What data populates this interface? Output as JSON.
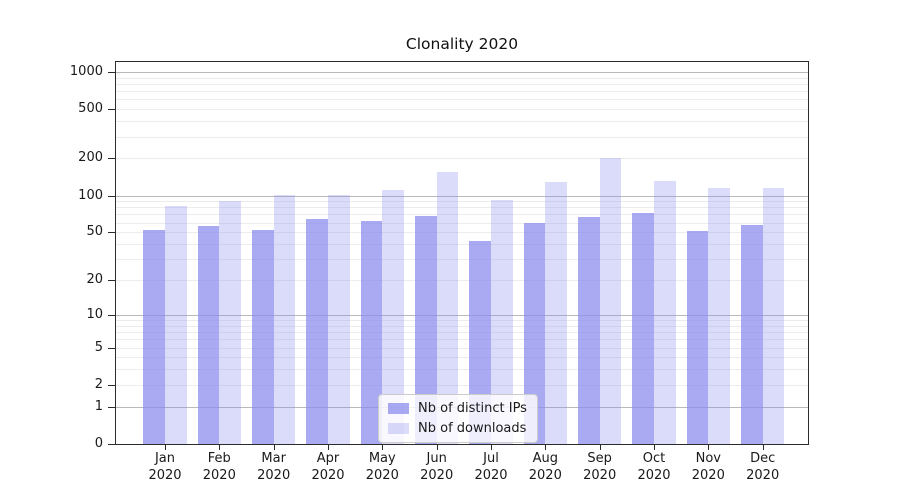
{
  "title": "Clonality 2020",
  "chart_data": {
    "type": "bar",
    "title": "Clonality 2020",
    "x": {
      "months": [
        "Jan",
        "Feb",
        "Mar",
        "Apr",
        "May",
        "Jun",
        "Jul",
        "Aug",
        "Sep",
        "Oct",
        "Nov",
        "Dec"
      ],
      "year": "2020"
    },
    "series": [
      {
        "name": "Nb of distinct IPs",
        "fill": "rgba(137,137,237,0.72)",
        "values": [
          52,
          56,
          52,
          64,
          62,
          68,
          42,
          60,
          67,
          72,
          51,
          57
        ]
      },
      {
        "name": "Nb of downloads",
        "fill": "rgba(137,137,237,0.30)",
        "values": [
          82,
          90,
          101,
          101,
          110,
          154,
          92,
          130,
          200,
          132,
          115,
          115
        ]
      }
    ],
    "y_axis": {
      "scale": "log1p",
      "tick_values": [
        1000,
        500,
        200,
        100,
        50,
        20,
        10,
        5,
        2,
        1,
        0
      ],
      "major_grid_values": [
        1,
        10,
        100,
        1000
      ],
      "minor_grid_values": [
        2,
        3,
        4,
        5,
        6,
        7,
        8,
        9,
        20,
        30,
        40,
        50,
        60,
        70,
        80,
        90,
        200,
        300,
        400,
        500,
        600,
        700,
        800,
        900
      ],
      "top_value": 1280
    },
    "legend_position": "lower center",
    "grid": true
  },
  "colors": {
    "bar_base": "#8989ed",
    "major_grid": "#b9b9b9",
    "minor_grid": "#ececec",
    "spine": "#2b2b2b",
    "legend_border": "#cccccc",
    "text": "#1a1a1a"
  }
}
